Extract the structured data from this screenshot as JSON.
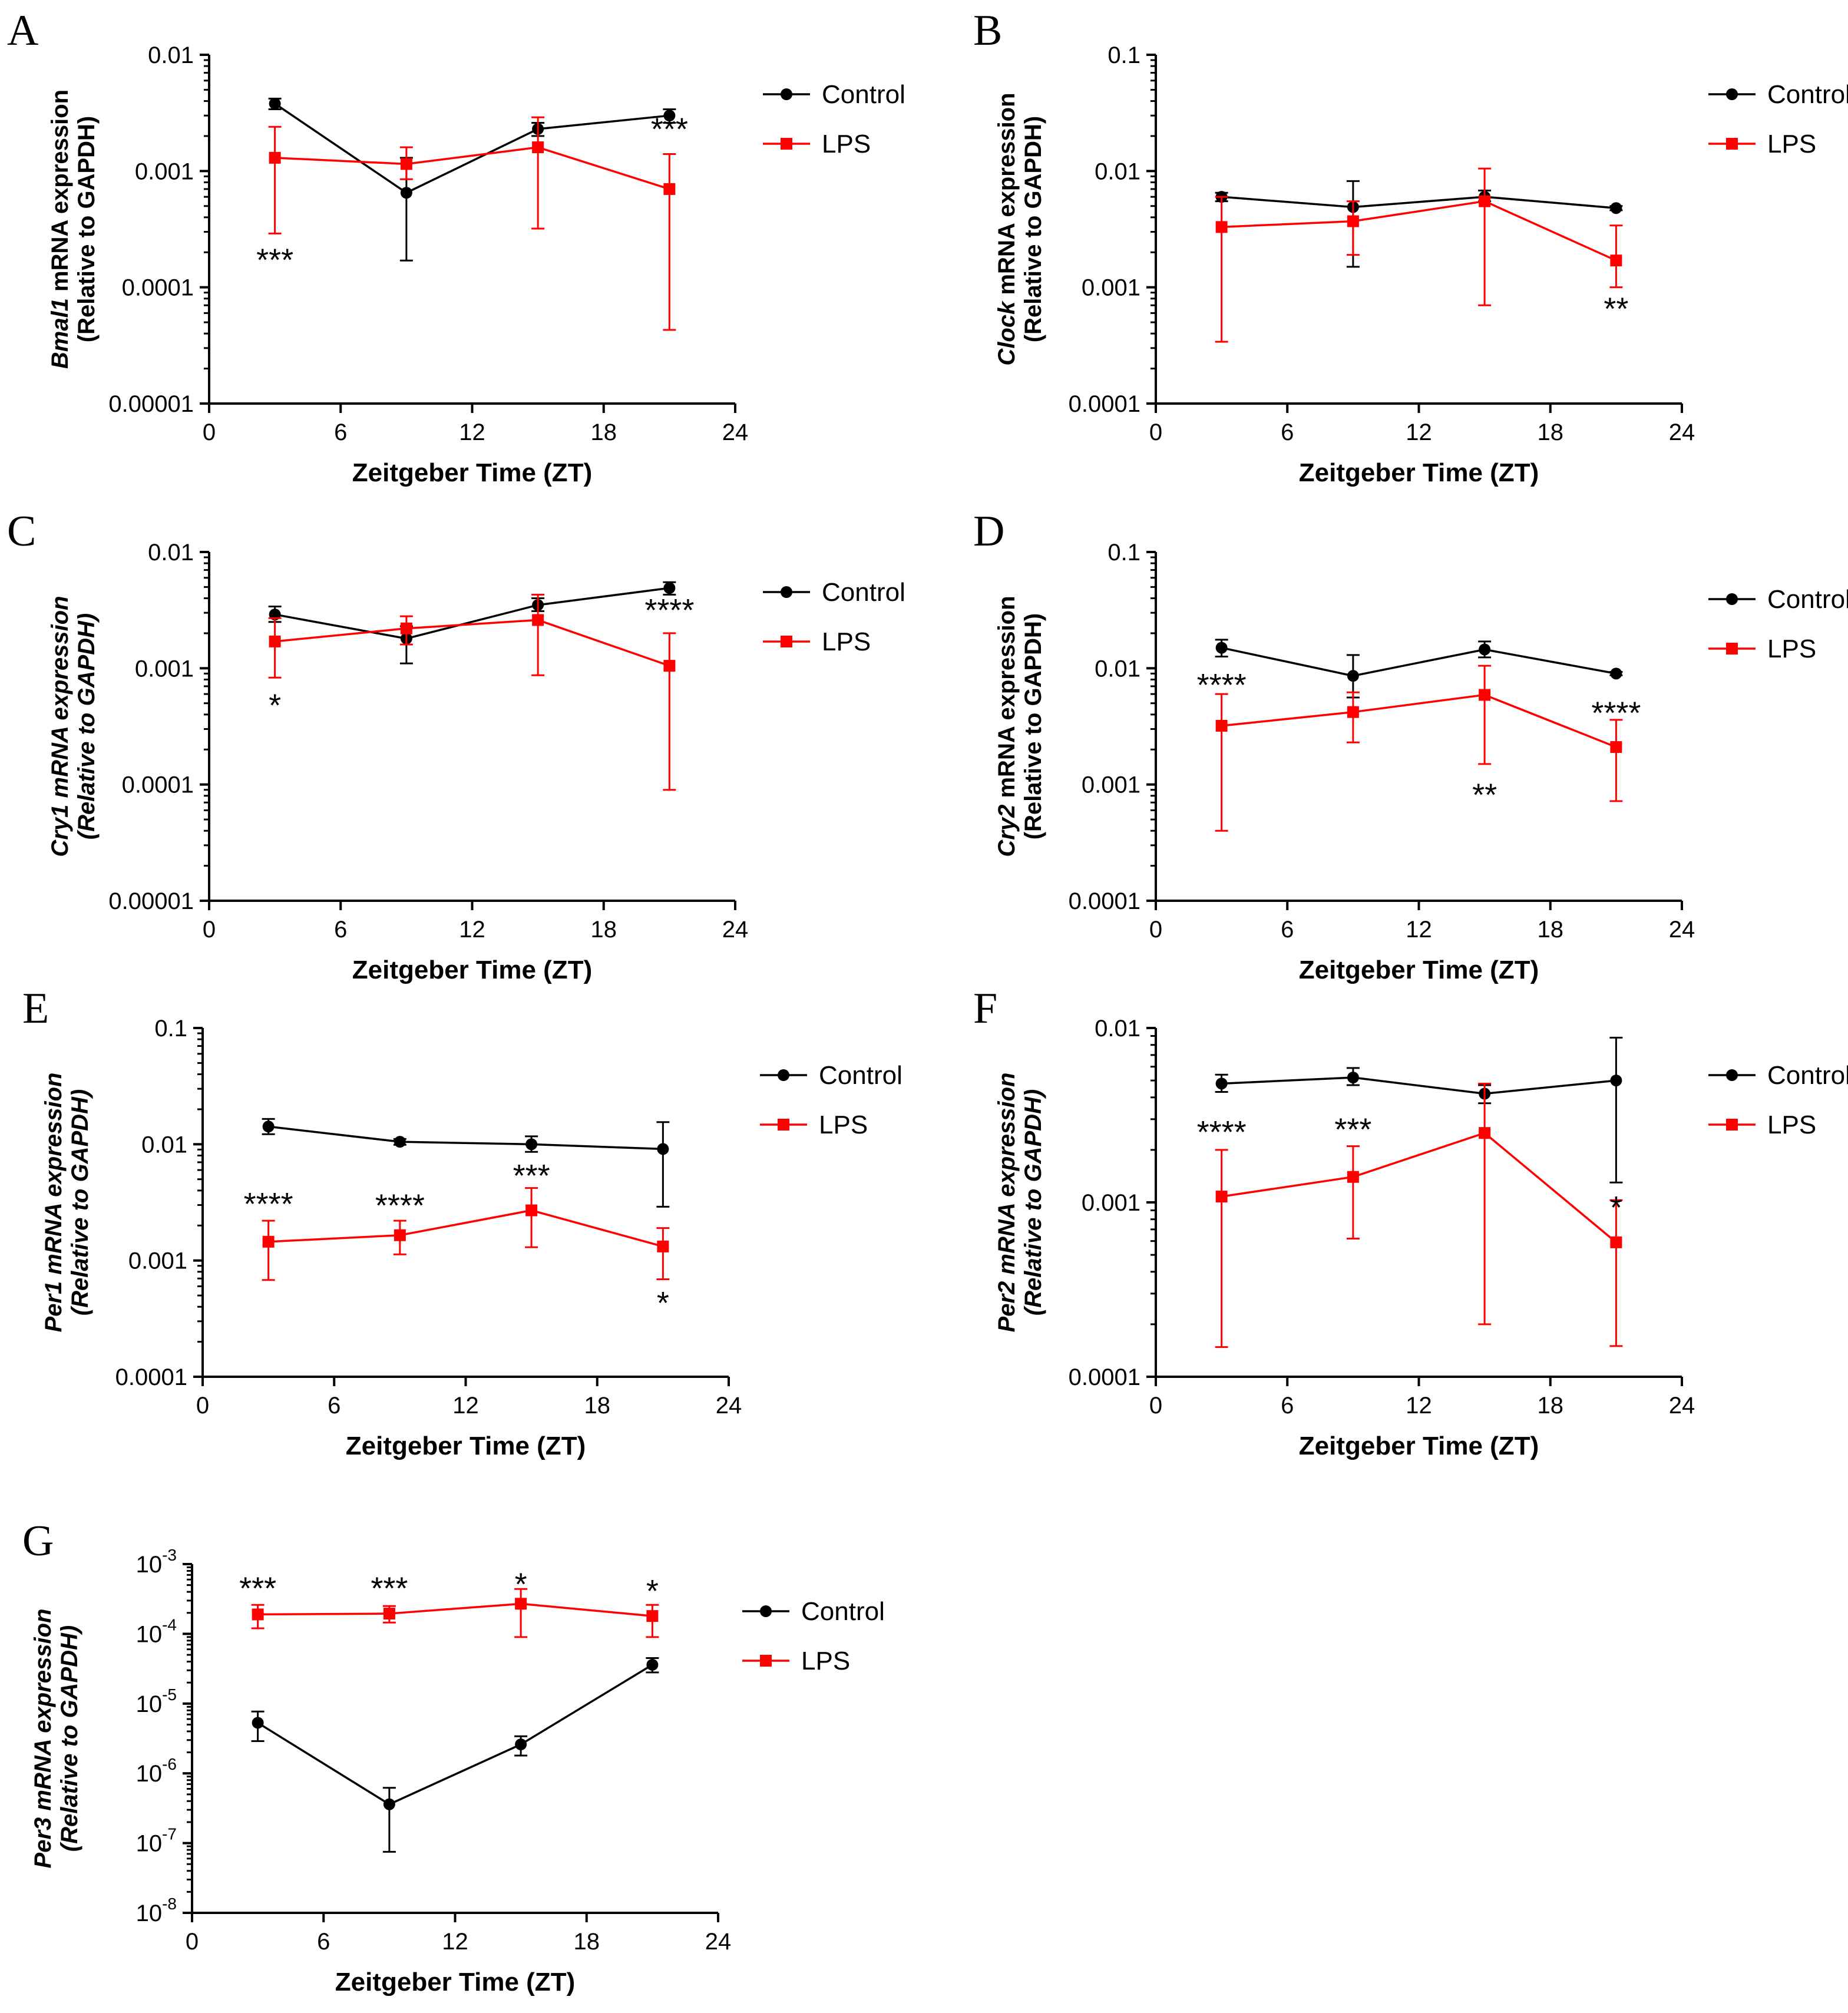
{
  "colors": {
    "control": "#000000",
    "lps": "#ff0000"
  },
  "chart_data": [
    {
      "type": "line",
      "panel": "A",
      "gene": "Bmal1",
      "ylabel_rest": " mRNA expression",
      "ylabel2": "(Relative to GAPDH)",
      "italic_all": false,
      "xlabel": "Zeitgeber Time (ZT)",
      "xlim": [
        0,
        24
      ],
      "xticks": [
        "0",
        "6",
        "12",
        "18",
        "24"
      ],
      "yscale": "log",
      "ylim": [
        1e-05,
        0.01
      ],
      "yticks": [
        {
          "v": 0.01,
          "t": "0.01"
        },
        {
          "v": 0.001,
          "t": "0.001"
        },
        {
          "v": 0.0001,
          "t": "0.0001"
        },
        {
          "v": 1e-05,
          "t": "0.00001"
        }
      ],
      "legend": [
        "Control",
        "LPS"
      ],
      "series": [
        {
          "name": "Control",
          "x": [
            3,
            9,
            15,
            21
          ],
          "values": [
            0.0038,
            0.00065,
            0.0023,
            0.003
          ],
          "low": [
            0.0034,
            0.00017,
            0.002,
            0.0026
          ],
          "high": [
            0.0042,
            0.0013,
            0.0026,
            0.0034
          ]
        },
        {
          "name": "LPS",
          "x": [
            3,
            9,
            15,
            21
          ],
          "values": [
            0.0013,
            0.00115,
            0.0016,
            0.0007
          ],
          "low": [
            0.00029,
            0.00085,
            0.00032,
            4.3e-05
          ],
          "high": [
            0.0024,
            0.0016,
            0.0029,
            0.0014
          ]
        }
      ],
      "annotations": [
        {
          "x": 3,
          "y": 0.00018,
          "t": "***"
        },
        {
          "x": 21,
          "y": 0.0024,
          "t": "***"
        }
      ]
    },
    {
      "type": "line",
      "panel": "B",
      "gene": "Clock",
      "ylabel_rest": " mRNA expression",
      "ylabel2": "(Relative to GAPDH)",
      "italic_all": false,
      "xlabel": "Zeitgeber Time (ZT)",
      "xlim": [
        0,
        24
      ],
      "xticks": [
        "0",
        "6",
        "12",
        "18",
        "24"
      ],
      "yscale": "log",
      "ylim": [
        0.0001,
        0.1
      ],
      "yticks": [
        {
          "v": 0.1,
          "t": "0.1"
        },
        {
          "v": 0.01,
          "t": "0.01"
        },
        {
          "v": 0.001,
          "t": "0.001"
        },
        {
          "v": 0.0001,
          "t": "0.0001"
        }
      ],
      "legend": [
        "Control",
        "LPS"
      ],
      "series": [
        {
          "name": "Control",
          "x": [
            3,
            9,
            15,
            21
          ],
          "values": [
            0.006,
            0.0049,
            0.006,
            0.0048
          ],
          "low": [
            0.0055,
            0.0015,
            0.0055,
            0.0046
          ],
          "high": [
            0.0065,
            0.0082,
            0.0068,
            0.005
          ]
        },
        {
          "name": "LPS",
          "x": [
            3,
            9,
            15,
            21
          ],
          "values": [
            0.0033,
            0.0037,
            0.0055,
            0.0017
          ],
          "low": [
            0.00034,
            0.0019,
            0.0007,
            0.001
          ],
          "high": [
            0.006,
            0.0055,
            0.0105,
            0.0034
          ]
        }
      ],
      "annotations": [
        {
          "x": 21,
          "y": 0.00068,
          "t": "**"
        }
      ]
    },
    {
      "type": "line",
      "panel": "C",
      "gene": "Cry1",
      "ylabel_rest": " mRNA expression",
      "ylabel2": "(Relative to GAPDH)",
      "italic_all": true,
      "xlabel": "Zeitgeber Time (ZT)",
      "xlim": [
        0,
        24
      ],
      "xticks": [
        "0",
        "6",
        "12",
        "18",
        "24"
      ],
      "yscale": "log",
      "ylim": [
        1e-05,
        0.01
      ],
      "yticks": [
        {
          "v": 0.01,
          "t": "0.01"
        },
        {
          "v": 0.001,
          "t": "0.001"
        },
        {
          "v": 0.0001,
          "t": "0.0001"
        },
        {
          "v": 1e-05,
          "t": "0.00001"
        }
      ],
      "legend": [
        "Control",
        "LPS"
      ],
      "series": [
        {
          "name": "Control",
          "x": [
            3,
            9,
            15,
            21
          ],
          "values": [
            0.0029,
            0.0018,
            0.0035,
            0.0049
          ],
          "low": [
            0.0025,
            0.0011,
            0.0031,
            0.0043
          ],
          "high": [
            0.0034,
            0.0023,
            0.004,
            0.0055
          ]
        },
        {
          "name": "LPS",
          "x": [
            3,
            9,
            15,
            21
          ],
          "values": [
            0.0017,
            0.0022,
            0.0026,
            0.00105
          ],
          "low": [
            0.00083,
            0.0016,
            0.00087,
            9e-05
          ],
          "high": [
            0.0027,
            0.0028,
            0.0043,
            0.002
          ]
        }
      ],
      "annotations": [
        {
          "x": 3,
          "y": 0.0005,
          "t": "*"
        },
        {
          "x": 21,
          "y": 0.0033,
          "t": "****"
        }
      ]
    },
    {
      "type": "line",
      "panel": "D",
      "gene": "Cry2",
      "ylabel_rest": " mRNA expression",
      "ylabel2": "(Relative to GAPDH)",
      "italic_all": false,
      "xlabel": "Zeitgeber Time (ZT)",
      "xlim": [
        0,
        24
      ],
      "xticks": [
        "0",
        "6",
        "12",
        "18",
        "24"
      ],
      "yscale": "log",
      "ylim": [
        0.0001,
        0.1
      ],
      "yticks": [
        {
          "v": 0.1,
          "t": "0.1"
        },
        {
          "v": 0.01,
          "t": "0.01"
        },
        {
          "v": 0.001,
          "t": "0.001"
        },
        {
          "v": 0.0001,
          "t": "0.0001"
        }
      ],
      "legend": [
        "Control",
        "LPS"
      ],
      "series": [
        {
          "name": "Control",
          "x": [
            3,
            9,
            15,
            21
          ],
          "values": [
            0.015,
            0.0086,
            0.0145,
            0.009
          ],
          "low": [
            0.0126,
            0.0056,
            0.0124,
            0.0087
          ],
          "high": [
            0.0176,
            0.013,
            0.017,
            0.0093
          ]
        },
        {
          "name": "LPS",
          "x": [
            3,
            9,
            15,
            21
          ],
          "values": [
            0.0032,
            0.0042,
            0.0059,
            0.0021
          ],
          "low": [
            0.0004,
            0.0023,
            0.0015,
            0.00072
          ],
          "high": [
            0.006,
            0.0062,
            0.0105,
            0.0036
          ]
        }
      ],
      "annotations": [
        {
          "x": 3,
          "y": 0.0075,
          "t": "****"
        },
        {
          "x": 15,
          "y": 0.00085,
          "t": "**"
        },
        {
          "x": 21,
          "y": 0.0043,
          "t": "****"
        }
      ]
    },
    {
      "type": "line",
      "panel": "E",
      "gene": "Per1",
      "ylabel_rest": " mRNA expression",
      "ylabel2": "(Relative to GAPDH)",
      "italic_all": true,
      "xlabel": "Zeitgeber Time (ZT)",
      "xlim": [
        0,
        24
      ],
      "xticks": [
        "0",
        "6",
        "12",
        "18",
        "24"
      ],
      "yscale": "log",
      "ylim": [
        0.0001,
        0.1
      ],
      "yticks": [
        {
          "v": 0.1,
          "t": "0.1"
        },
        {
          "v": 0.01,
          "t": "0.01"
        },
        {
          "v": 0.001,
          "t": "0.001"
        },
        {
          "v": 0.0001,
          "t": "0.0001"
        }
      ],
      "legend": [
        "Control",
        "LPS"
      ],
      "series": [
        {
          "name": "Control",
          "x": [
            3,
            9,
            15,
            21
          ],
          "values": [
            0.0142,
            0.0105,
            0.01,
            0.0091
          ],
          "low": [
            0.0122,
            0.0099,
            0.0086,
            0.0029
          ],
          "high": [
            0.0165,
            0.0111,
            0.0117,
            0.0155
          ]
        },
        {
          "name": "LPS",
          "x": [
            3,
            9,
            15,
            21
          ],
          "values": [
            0.00145,
            0.00165,
            0.0027,
            0.00132
          ],
          "low": [
            0.00068,
            0.00113,
            0.0013,
            0.00069
          ],
          "high": [
            0.0022,
            0.0022,
            0.0042,
            0.0019
          ]
        }
      ],
      "annotations": [
        {
          "x": 3,
          "y": 0.0032,
          "t": "****"
        },
        {
          "x": 9,
          "y": 0.0031,
          "t": "****"
        },
        {
          "x": 15,
          "y": 0.0056,
          "t": "***"
        },
        {
          "x": 21,
          "y": 0.00045,
          "t": "*"
        }
      ]
    },
    {
      "type": "line",
      "panel": "F",
      "gene": "Per2",
      "ylabel_rest": " mRNA expression",
      "ylabel2": "(Relative to GAPDH)",
      "italic_all": true,
      "xlabel": "Zeitgeber Time (ZT)",
      "xlim": [
        0,
        24
      ],
      "xticks": [
        "0",
        "6",
        "12",
        "18",
        "24"
      ],
      "yscale": "log",
      "ylim": [
        0.0001,
        0.01
      ],
      "yticks": [
        {
          "v": 0.01,
          "t": "0.01"
        },
        {
          "v": 0.001,
          "t": "0.001"
        },
        {
          "v": 0.0001,
          "t": "0.0001"
        }
      ],
      "legend": [
        "Control",
        "LPS"
      ],
      "series": [
        {
          "name": "Control",
          "x": [
            3,
            9,
            15,
            21
          ],
          "values": [
            0.0048,
            0.0052,
            0.0042,
            0.005
          ],
          "low": [
            0.0043,
            0.0047,
            0.0037,
            0.0013
          ],
          "high": [
            0.0054,
            0.0059,
            0.0047,
            0.0088
          ]
        },
        {
          "name": "LPS",
          "x": [
            3,
            9,
            15,
            21
          ],
          "values": [
            0.00108,
            0.0014,
            0.0025,
            0.00059
          ],
          "low": [
            0.000148,
            0.00062,
            0.0002,
            0.00015
          ],
          "high": [
            0.002,
            0.0021,
            0.0048,
            0.00103
          ]
        }
      ],
      "annotations": [
        {
          "x": 3,
          "y": 0.0026,
          "t": "****"
        },
        {
          "x": 9,
          "y": 0.0027,
          "t": "***"
        },
        {
          "x": 21,
          "y": 0.00096,
          "t": "*"
        }
      ]
    },
    {
      "type": "line",
      "panel": "G",
      "gene": "Per3",
      "ylabel_rest": " mRNA expression",
      "ylabel2": "(Relative to GAPDH)",
      "italic_all": true,
      "xlabel": "Zeitgeber Time (ZT)",
      "xlim": [
        0,
        24
      ],
      "xticks": [
        "0",
        "6",
        "12",
        "18",
        "24"
      ],
      "yscale": "log",
      "ylim": [
        1e-08,
        0.001
      ],
      "yticks": [
        {
          "v": 0.001,
          "t": "10",
          "e": "-3"
        },
        {
          "v": 0.0001,
          "t": "10",
          "e": "-4"
        },
        {
          "v": 1e-05,
          "t": "10",
          "e": "-5"
        },
        {
          "v": 1e-06,
          "t": "10",
          "e": "-6"
        },
        {
          "v": 1e-07,
          "t": "10",
          "e": "-7"
        },
        {
          "v": 1e-08,
          "t": "10",
          "e": "-8"
        }
      ],
      "legend": [
        "Control",
        "LPS"
      ],
      "series": [
        {
          "name": "Control",
          "x": [
            3,
            9,
            15,
            21
          ],
          "values": [
            5.3e-06,
            3.6e-07,
            2.6e-06,
            3.6e-05
          ],
          "low": [
            2.9e-06,
            7.5e-08,
            1.8e-06,
            2.8e-05
          ],
          "high": [
            7.7e-06,
            6.2e-07,
            3.4e-06,
            4.5e-05
          ]
        },
        {
          "name": "LPS",
          "x": [
            3,
            9,
            15,
            21
          ],
          "values": [
            0.00019,
            0.000195,
            0.00027,
            0.00018
          ],
          "low": [
            0.00012,
            0.000145,
            9e-05,
            9e-05
          ],
          "high": [
            0.00026,
            0.00025,
            0.00044,
            0.00026
          ]
        }
      ],
      "annotations": [
        {
          "x": 3,
          "y": 0.00048,
          "t": "***"
        },
        {
          "x": 9,
          "y": 0.00048,
          "t": "***"
        },
        {
          "x": 15,
          "y": 0.00055,
          "t": "*"
        },
        {
          "x": 21,
          "y": 0.00044,
          "t": "*"
        }
      ]
    }
  ]
}
